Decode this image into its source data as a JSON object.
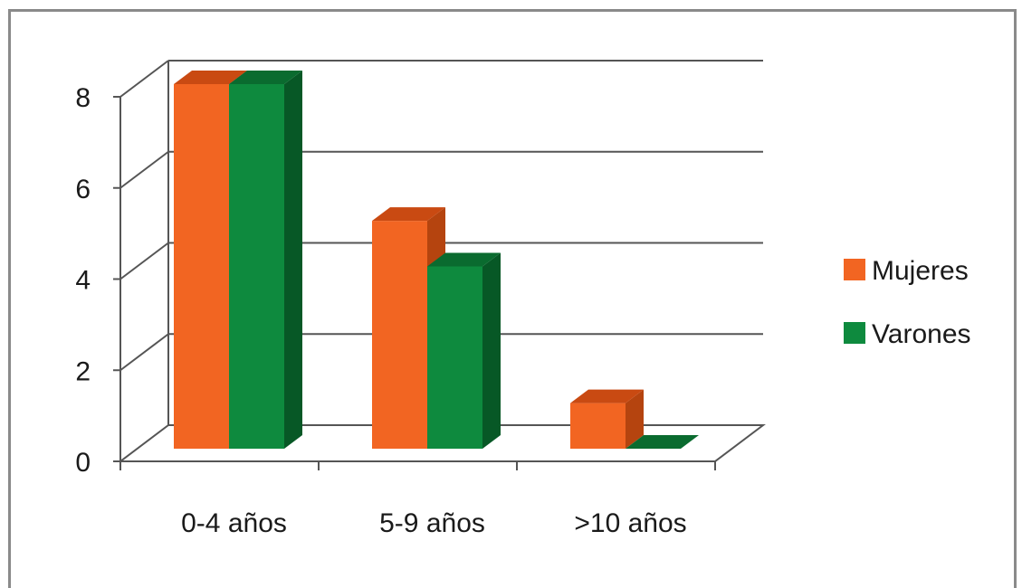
{
  "chart_data": {
    "type": "bar",
    "variant": "3d-clustered-column",
    "title": "",
    "xlabel": "",
    "ylabel": "",
    "categories": [
      "0-4 años",
      "5-9 años",
      ">10 años"
    ],
    "series": [
      {
        "name": "Mujeres",
        "values": [
          8,
          5,
          1
        ],
        "color": "#F26522",
        "top_color": "#C94A12",
        "side_color": "#B5440F"
      },
      {
        "name": "Varones",
        "values": [
          8,
          4,
          0
        ],
        "color": "#0E8A3E",
        "top_color": "#0A6B2F",
        "side_color": "#075826"
      }
    ],
    "ylim": [
      0,
      8
    ],
    "yticks": [
      "0",
      "2",
      "4",
      "6",
      "8"
    ],
    "ytick_values": [
      0,
      2,
      4,
      6,
      8
    ],
    "grid": true,
    "grid_color": "#555555",
    "legend": {
      "placement": "right"
    }
  }
}
